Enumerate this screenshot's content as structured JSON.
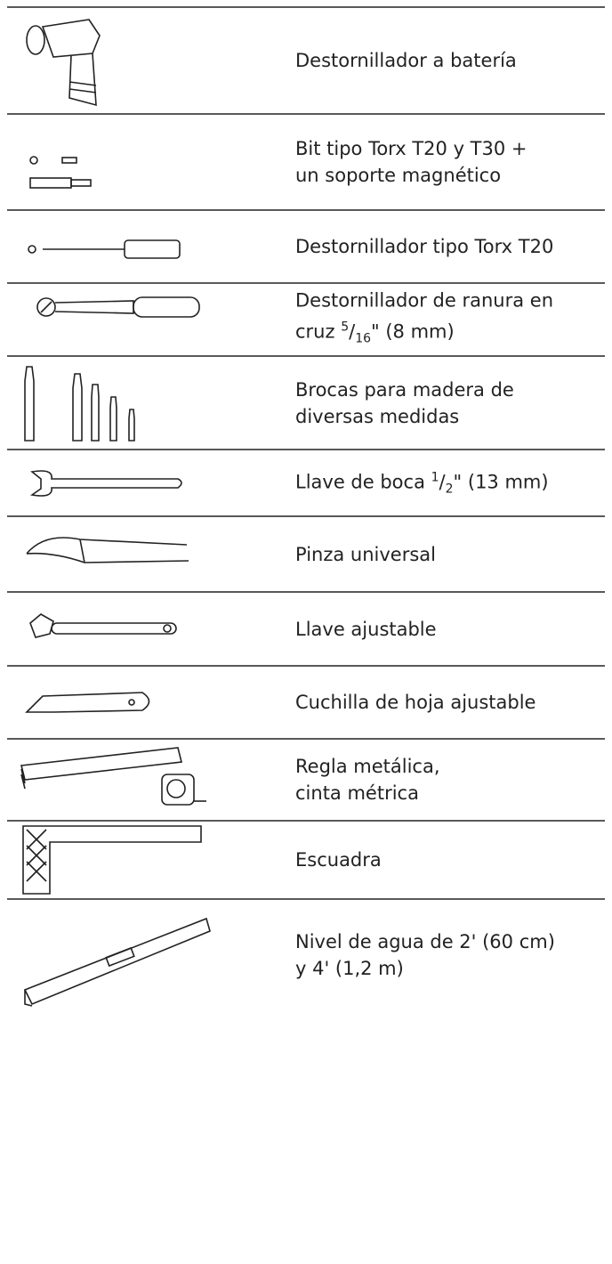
{
  "table": {
    "rows": [
      {
        "lines": [
          [
            "Destornillador a batería"
          ]
        ]
      },
      {
        "lines": [
          [
            "Bit tipo Torx T20 y T30 +"
          ],
          [
            "un soporte magnético"
          ]
        ]
      },
      {
        "lines": [
          [
            "Destornillador tipo Torx T20"
          ]
        ]
      },
      {
        "lines": [
          [
            "Destornillador de ranura en"
          ],
          [
            "cruz ",
            {
              "sup": "5"
            },
            "/",
            {
              "sub": "16"
            },
            "\" (8 mm)"
          ]
        ]
      },
      {
        "lines": [
          [
            "Brocas para madera de"
          ],
          [
            "diversas medidas"
          ]
        ]
      },
      {
        "lines": [
          [
            "Llave de boca ",
            {
              "sup": "1"
            },
            "/",
            {
              "sub": "2"
            },
            "\" (13 mm)"
          ]
        ]
      },
      {
        "lines": [
          [
            "Pinza universal"
          ]
        ]
      },
      {
        "lines": [
          [
            "Llave ajustable"
          ]
        ]
      },
      {
        "lines": [
          [
            "Cuchilla de hoja ajustable"
          ]
        ]
      },
      {
        "lines": [
          [
            "Regla metálica,"
          ],
          [
            "cinta métrica"
          ]
        ]
      },
      {
        "lines": [
          [
            "Escuadra"
          ]
        ]
      },
      {
        "lines": [
          [
            "Nivel de agua de 2' (60 cm)"
          ],
          [
            "y 4' (1,2 m)"
          ]
        ]
      }
    ]
  }
}
